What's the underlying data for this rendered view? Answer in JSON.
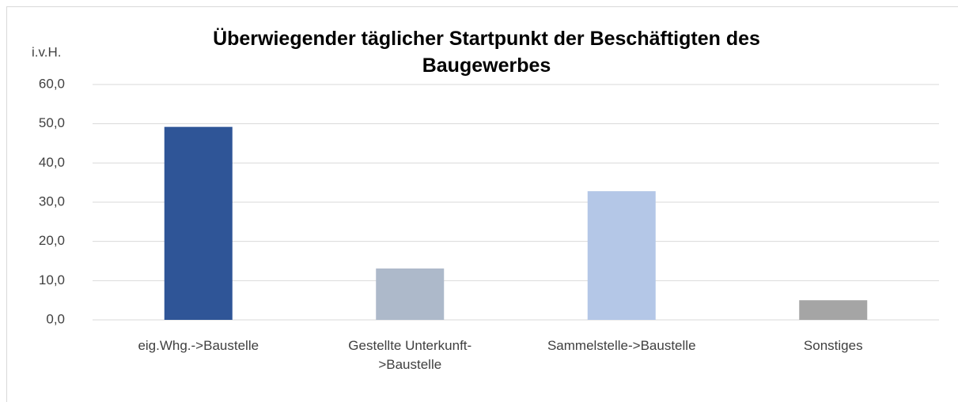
{
  "chart_data": {
    "type": "bar",
    "title": "Überwiegender täglicher Startpunkt der Beschäftigten des Baugewerbes",
    "y_label": "i.v.H.",
    "categories": [
      "eig.Whg.->Baustelle",
      "Gestellte Unterkunft->Baustelle",
      "Sammelstelle->Baustelle",
      "Sonstiges"
    ],
    "values": [
      49.2,
      13.1,
      32.8,
      5.0
    ],
    "colors": [
      "#2f5597",
      "#adb9ca",
      "#b4c7e7",
      "#a5a5a5"
    ],
    "ylim": [
      0,
      60
    ],
    "yticks": [
      {
        "value": 0,
        "label": "0,0"
      },
      {
        "value": 10,
        "label": "10,0"
      },
      {
        "value": 20,
        "label": "20,0"
      },
      {
        "value": 30,
        "label": "30,0"
      },
      {
        "value": 40,
        "label": "40,0"
      },
      {
        "value": 50,
        "label": "50,0"
      },
      {
        "value": 60,
        "label": "60,0"
      }
    ],
    "grid": true
  }
}
